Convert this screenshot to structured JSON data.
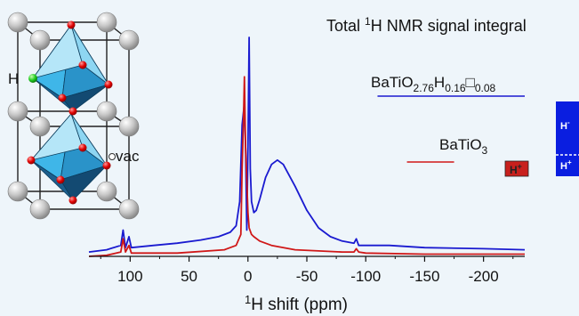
{
  "chart_data": {
    "type": "line",
    "title_main": "Total ",
    "title_sup": "1",
    "title_rest": "H NMR signal integral",
    "xlabel_sup": "1",
    "xlabel_rest": "H shift  (ppm)",
    "ylabel": "",
    "xlim": [
      135,
      -235
    ],
    "x_reversed": true,
    "ylim": [
      0,
      1
    ],
    "x_ticks": [
      100,
      50,
      0,
      -50,
      -100,
      -150,
      -200
    ],
    "x_tick_labels": [
      "100",
      "50",
      "0",
      "-50",
      "-100",
      "-150",
      "-200"
    ],
    "series": [
      {
        "name": "BaTiO2.76H0.16□0.08",
        "label_parts": {
          "a": "BaTiO",
          "s1": "2.76",
          "b": "H",
          "s2": "0.16",
          "box": "□",
          "s3": "0.08"
        },
        "color": "#1a1ad0",
        "x": [
          135,
          120,
          108,
          106,
          104,
          101,
          99,
          80,
          60,
          40,
          25,
          15,
          10,
          7,
          5,
          3,
          2,
          1,
          0,
          -1,
          -2,
          -3,
          -5,
          -7,
          -10,
          -15,
          -20,
          -25,
          -30,
          -40,
          -50,
          -60,
          -70,
          -80,
          -85,
          -90,
          -92,
          -94,
          -100,
          -120,
          -150,
          -200,
          -235
        ],
        "y": [
          0.02,
          0.03,
          0.05,
          0.12,
          0.04,
          0.09,
          0.04,
          0.05,
          0.06,
          0.075,
          0.09,
          0.11,
          0.14,
          0.25,
          0.6,
          0.7,
          0.5,
          0.12,
          0.5,
          1.0,
          0.4,
          0.25,
          0.2,
          0.21,
          0.26,
          0.36,
          0.42,
          0.44,
          0.42,
          0.32,
          0.21,
          0.13,
          0.09,
          0.07,
          0.065,
          0.06,
          0.08,
          0.05,
          0.05,
          0.05,
          0.04,
          0.035,
          0.03
        ]
      },
      {
        "name": "BaTiO3",
        "label_parts": {
          "a": "BaTiO",
          "s1": "3"
        },
        "color": "#d01818",
        "x": [
          135,
          120,
          108,
          106,
          104,
          101,
          99,
          60,
          20,
          10,
          6,
          5,
          4,
          3,
          2,
          0,
          -1,
          -3,
          -5,
          -10,
          -20,
          -40,
          -60,
          -80,
          -90,
          -92,
          -94,
          -100,
          -150,
          -200,
          -235
        ],
        "y": [
          0.0,
          0.005,
          0.02,
          0.08,
          0.02,
          0.05,
          0.015,
          0.015,
          0.03,
          0.05,
          0.1,
          0.4,
          0.58,
          0.82,
          0.5,
          0.2,
          0.13,
          0.1,
          0.09,
          0.07,
          0.05,
          0.03,
          0.025,
          0.02,
          0.02,
          0.035,
          0.02,
          0.015,
          0.01,
          0.01,
          0.01
        ]
      }
    ],
    "integrals": [
      {
        "series": "BaTiO2.76H0.16□0.08",
        "color": "#1a1ad0",
        "from": -110,
        "to": -235
      },
      {
        "series": "BaTiO3",
        "color": "#d01818",
        "from": -135,
        "to": -175
      }
    ],
    "badges": [
      {
        "text": "H",
        "sup": "+",
        "bg": "#c8201d"
      },
      {
        "text": "H",
        "sup": "-",
        "bg": "#0a1ee0"
      },
      {
        "text": "H",
        "sup": "+",
        "bg": "#0a1ee0"
      }
    ],
    "inset": {
      "atom_label": "H",
      "vac_label": "vac"
    },
    "grid": false,
    "legend": "none"
  }
}
